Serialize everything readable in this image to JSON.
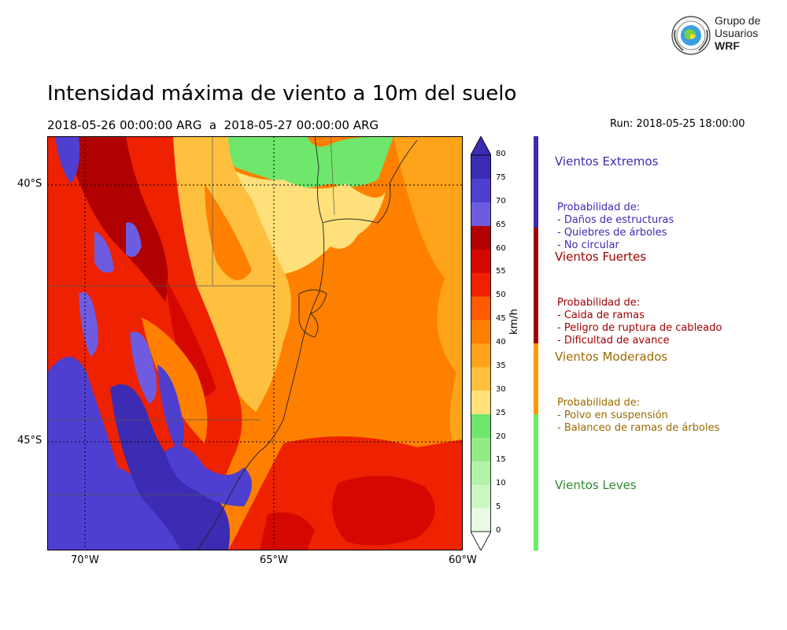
{
  "title": "Intensidad máxima de viento a 10m del suelo",
  "period": "2018-05-26 00:00:00 ARG  a  2018-05-27 00:00:00 ARG",
  "run": "Run: 2018-05-25 18:00:00",
  "logo": {
    "line1": "Grupo de",
    "line2": "Usuarios",
    "line3": "WRF",
    "icon": "globe-seal-icon"
  },
  "map": {
    "lat_labels": [
      "40°S",
      "45°S"
    ],
    "lon_labels": [
      "70°W",
      "65°W",
      "60°W"
    ],
    "lat_range": [
      -47.1,
      -39.1
    ],
    "lon_range": [
      -71,
      -60
    ]
  },
  "colorbar": {
    "unit": "km/h",
    "ticks": [
      "0",
      "5",
      "10",
      "15",
      "20",
      "25",
      "30",
      "35",
      "40",
      "45",
      "50",
      "55",
      "60",
      "65",
      "70",
      "75",
      "80"
    ],
    "colors": [
      "#e8fbe4",
      "#cdf7c2",
      "#b3f2a8",
      "#91ec86",
      "#6fe66c",
      "#ffe07a",
      "#ffc040",
      "#ffa31a",
      "#ff8000",
      "#ff5a00",
      "#ee2200",
      "#d40800",
      "#b00000",
      "#6e5ce0",
      "#4f3fd0",
      "#3b2cb3"
    ]
  },
  "categories": [
    {
      "title": "Vientos Extremos",
      "color": "#3b2cb3",
      "lines": [
        "Probabilidad de:",
        "- Daños de estructuras",
        "- Quiebres de árboles",
        "- No circular"
      ]
    },
    {
      "title": "Vientos Fuertes",
      "color": "#a00000",
      "lines": [
        "Probabilidad de:",
        "- Caida de ramas",
        "- Peligro de ruptura de cableado",
        "- Dificultad de avance"
      ]
    },
    {
      "title": "Vientos Moderados",
      "color": "#9c6a00",
      "bar_color": "#ff9900",
      "lines": [
        "Probabilidad de:",
        "- Polvo en suspensión",
        "- Balanceo de ramas de árboles"
      ]
    },
    {
      "title": "Vientos Leves",
      "color": "#2e8a2e",
      "bar_color": "#66ee66",
      "lines": []
    }
  ]
}
